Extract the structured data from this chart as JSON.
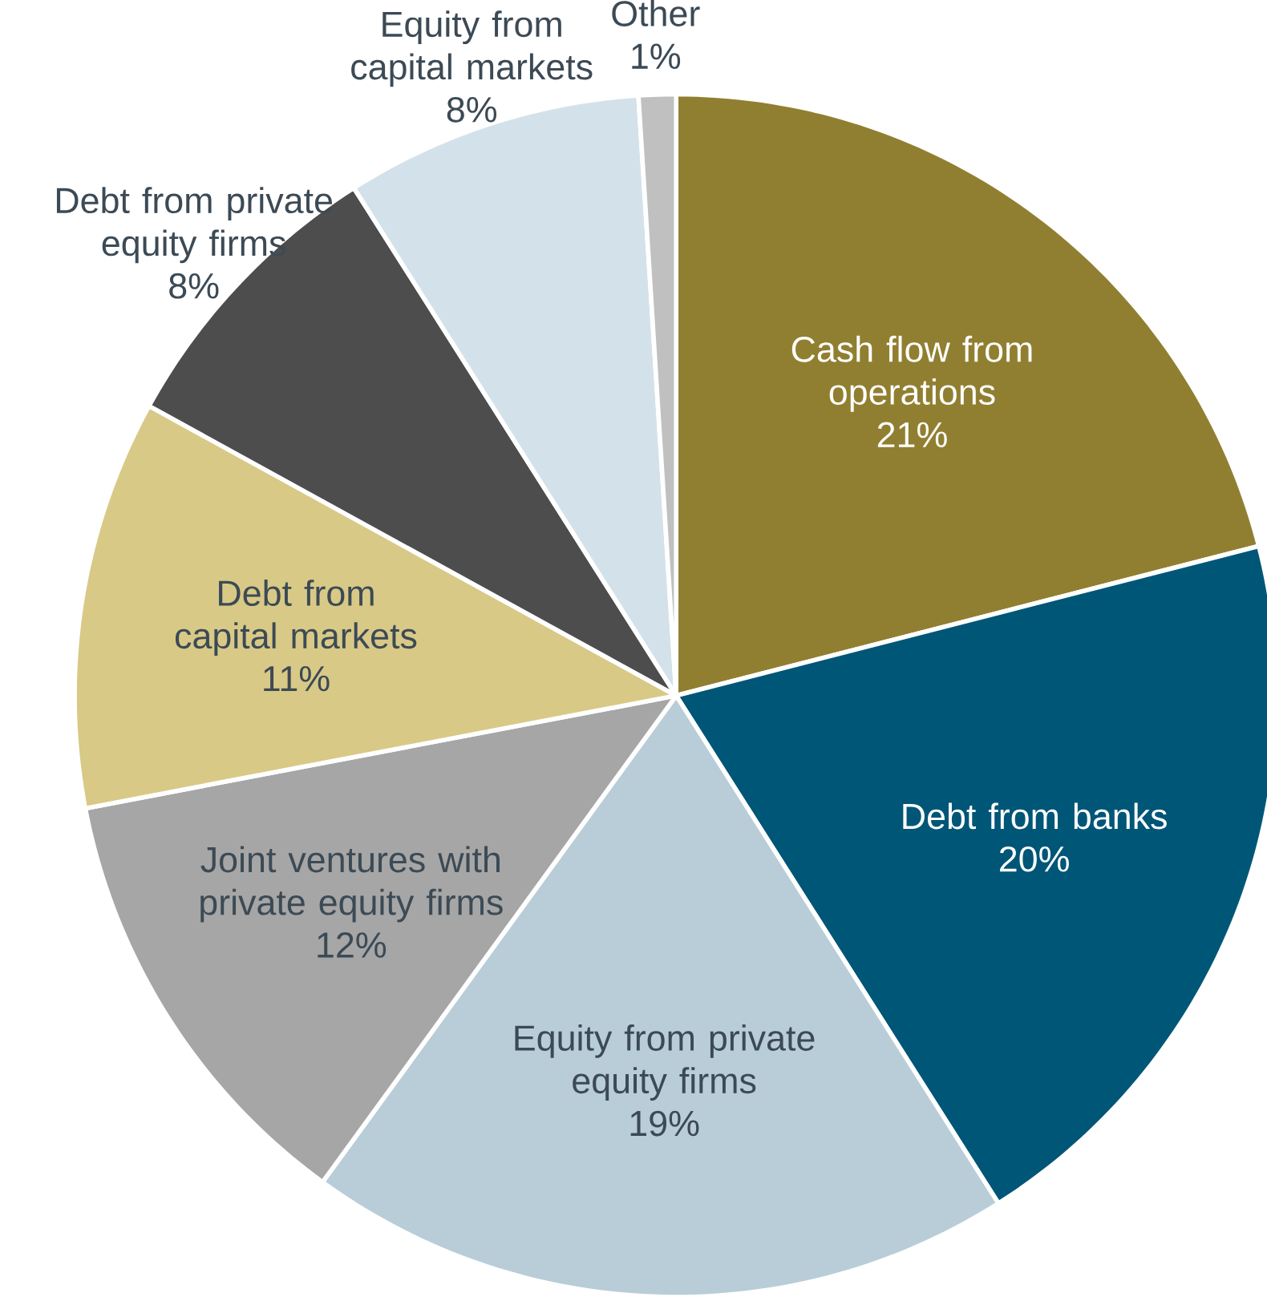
{
  "chart_data": {
    "type": "pie",
    "categories": [
      "Cash flow from operations",
      "Debt from banks",
      "Equity from private equity firms",
      "Joint ventures with private equity firms",
      "Debt from capital markets",
      "Debt from private equity firms",
      "Equity from capital markets",
      "Other"
    ],
    "values": [
      21,
      20,
      19,
      12,
      11,
      8,
      8,
      1
    ],
    "value_labels": [
      "21%",
      "20%",
      "19%",
      "12%",
      "11%",
      "8%",
      "8%",
      "1%"
    ],
    "colors": [
      "#917f31",
      "#005677",
      "#b8cdd8",
      "#a6a6a6",
      "#d8c987",
      "#4d4d4d",
      "#d3e2ea",
      "#c0c0c0"
    ]
  }
}
